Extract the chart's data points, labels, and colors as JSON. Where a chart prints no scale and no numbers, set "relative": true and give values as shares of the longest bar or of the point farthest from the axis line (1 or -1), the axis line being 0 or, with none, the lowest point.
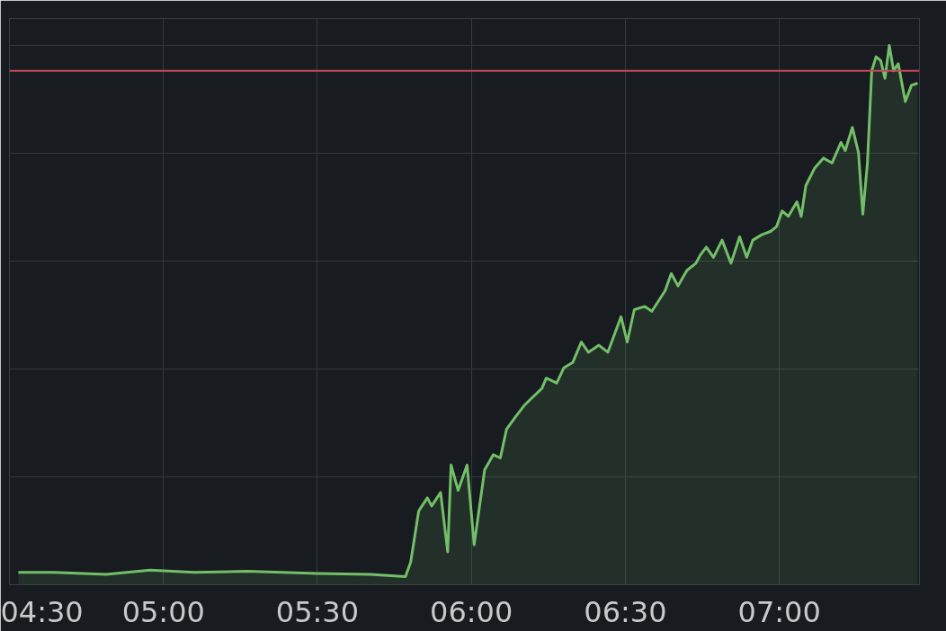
{
  "chart_data": {
    "type": "area",
    "relative": true,
    "x": [
      4.529,
      4.643,
      4.814,
      4.957,
      5.1,
      5.271,
      5.5,
      5.671,
      5.786,
      5.803,
      5.829,
      5.857,
      5.871,
      5.9,
      5.923,
      5.934,
      5.957,
      5.986,
      6.009,
      6.043,
      6.071,
      6.094,
      6.114,
      6.143,
      6.171,
      6.194,
      6.229,
      6.243,
      6.277,
      6.3,
      6.329,
      6.357,
      6.38,
      6.414,
      6.443,
      6.486,
      6.506,
      6.529,
      6.563,
      6.586,
      6.629,
      6.649,
      6.671,
      6.7,
      6.729,
      6.743,
      6.763,
      6.786,
      6.814,
      6.843,
      6.871,
      6.894,
      6.914,
      6.943,
      6.971,
      6.991,
      7.009,
      7.029,
      7.057,
      7.071,
      7.086,
      7.114,
      7.143,
      7.171,
      7.2,
      7.214,
      7.237,
      7.257,
      7.271,
      7.286,
      7.3,
      7.314,
      7.329,
      7.343,
      7.357,
      7.371,
      7.386,
      7.409,
      7.429,
      7.449
    ],
    "series": [
      {
        "color": "#73bf69",
        "values": [
          0.023,
          0.023,
          0.019,
          0.027,
          0.023,
          0.025,
          0.021,
          0.019,
          0.015,
          0.042,
          0.137,
          0.161,
          0.146,
          0.171,
          0.061,
          0.222,
          0.175,
          0.222,
          0.074,
          0.213,
          0.241,
          0.235,
          0.288,
          0.311,
          0.332,
          0.345,
          0.364,
          0.383,
          0.374,
          0.402,
          0.412,
          0.45,
          0.431,
          0.444,
          0.431,
          0.497,
          0.45,
          0.51,
          0.516,
          0.507,
          0.545,
          0.577,
          0.554,
          0.583,
          0.596,
          0.611,
          0.626,
          0.607,
          0.639,
          0.596,
          0.645,
          0.607,
          0.639,
          0.649,
          0.655,
          0.664,
          0.693,
          0.683,
          0.71,
          0.683,
          0.74,
          0.772,
          0.791,
          0.782,
          0.82,
          0.805,
          0.848,
          0.801,
          0.687,
          0.782,
          0.953,
          0.979,
          0.972,
          0.939,
          1,
          0.953,
          0.966,
          0.896,
          0.926,
          0.93
        ]
      }
    ],
    "xlim": [
      4.5,
      7.455
    ],
    "xticks": [
      {
        "value": 4.5,
        "label": "04:30"
      },
      {
        "value": 5,
        "label": "05:00"
      },
      {
        "value": 5.5,
        "label": "05:30"
      },
      {
        "value": 6,
        "label": "06:00"
      },
      {
        "value": 6.5,
        "label": "06:30"
      },
      {
        "value": 7,
        "label": "07:00"
      }
    ],
    "ref_lines": [
      {
        "axis": "y",
        "value": 0.953,
        "color": "#c4485e"
      }
    ],
    "grid": true,
    "tick_labels": "x"
  }
}
